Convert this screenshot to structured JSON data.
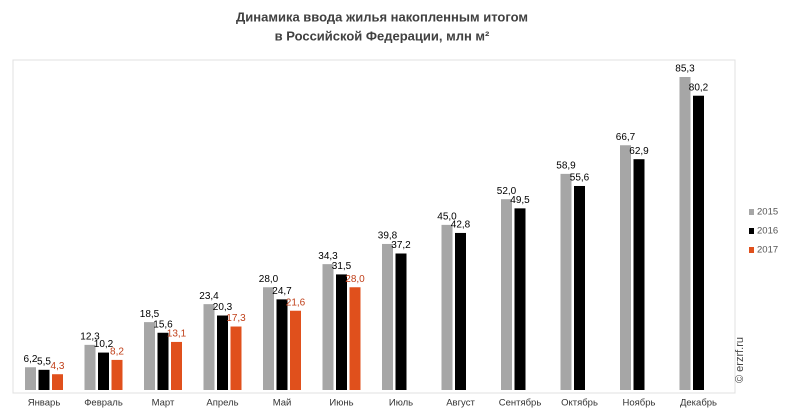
{
  "chart_data": {
    "type": "bar",
    "title_lines": [
      "Динамика ввода жилья накопленным итогом",
      "в Российской Федерации, млн м²"
    ],
    "categories": [
      "Январь",
      "Февраль",
      "Март",
      "Апрель",
      "Май",
      "Июнь",
      "Июль",
      "Август",
      "Сентябрь",
      "Октябрь",
      "Ноябрь",
      "Декабрь"
    ],
    "series": [
      {
        "name": "2015",
        "color": "#a6a6a6",
        "label_color": "#000000",
        "values": [
          6.2,
          12.3,
          18.5,
          23.4,
          28.0,
          34.3,
          39.8,
          45.0,
          52.0,
          58.9,
          66.7,
          85.3
        ],
        "value_labels": [
          "6,2",
          "12,3",
          "18,5",
          "23,4",
          "28,0",
          "34,3",
          "39,8",
          "45,0",
          "52,0",
          "58,9",
          "66,7",
          "85,3"
        ]
      },
      {
        "name": "2016",
        "color": "#000000",
        "label_color": "#000000",
        "values": [
          5.5,
          10.2,
          15.6,
          20.3,
          24.7,
          31.5,
          37.2,
          42.8,
          49.5,
          55.6,
          62.9,
          80.2
        ],
        "value_labels": [
          "5,5",
          "10,2",
          "15,6",
          "20,3",
          "24,7",
          "31,5",
          "37,2",
          "42,8",
          "49,5",
          "55,6",
          "62,9",
          "80,2"
        ]
      },
      {
        "name": "2017",
        "color": "#e0501c",
        "label_color": "#c0401a",
        "values": [
          4.3,
          8.2,
          13.1,
          17.3,
          21.6,
          28.0,
          null,
          null,
          null,
          null,
          null,
          null
        ],
        "value_labels": [
          "4,3",
          "8,2",
          "13,1",
          "17,3",
          "21,6",
          "28,0",
          null,
          null,
          null,
          null,
          null,
          null
        ]
      }
    ],
    "legend": "right",
    "watermark": "© erzrf.ru"
  }
}
